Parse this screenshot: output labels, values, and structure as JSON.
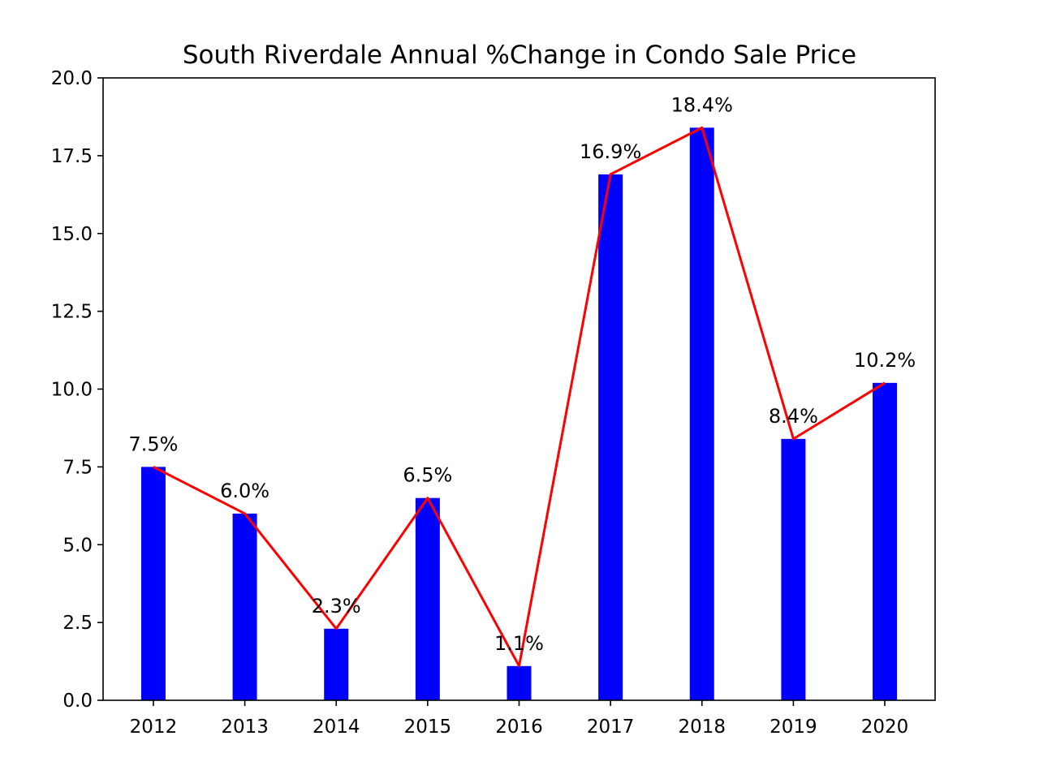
{
  "chart_data": {
    "type": "bar",
    "title": "South Riverdale Annual %Change in Condo Sale Price",
    "xlabel": "",
    "ylabel": "",
    "categories": [
      "2012",
      "2013",
      "2014",
      "2015",
      "2016",
      "2017",
      "2018",
      "2019",
      "2020"
    ],
    "values": [
      7.5,
      6.0,
      2.3,
      6.5,
      1.1,
      16.9,
      18.4,
      8.4,
      10.2
    ],
    "data_labels": [
      "7.5%",
      "6.0%",
      "2.3%",
      "6.5%",
      "1.1%",
      "16.9%",
      "18.4%",
      "8.4%",
      "10.2%"
    ],
    "line_overlay": true,
    "ylim": [
      0,
      20
    ],
    "yticks": [
      "0.0",
      "2.5",
      "5.0",
      "7.5",
      "10.0",
      "12.5",
      "15.0",
      "17.5",
      "20.0"
    ],
    "grid": false,
    "colors": {
      "bar": "#0000ff",
      "line": "#ff0000",
      "axes": "#000000"
    }
  }
}
